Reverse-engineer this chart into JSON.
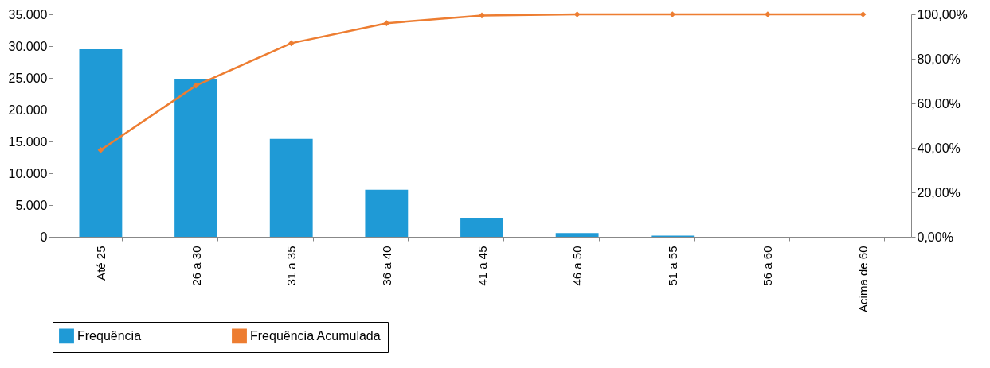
{
  "chart_data": {
    "type": "bar",
    "categories": [
      "Até 25",
      "26 a 30",
      "31 a 35",
      "36 a 40",
      "41 a 45",
      "46 a 50",
      "51 a 55",
      "56 a 60",
      "Acima de 60"
    ],
    "series": [
      {
        "name": "Frequência",
        "color": "#1f9ad6",
        "values": [
          29500,
          24800,
          15400,
          7400,
          3000,
          600,
          200,
          0,
          0
        ]
      },
      {
        "name": "Frequência Acumulada",
        "type": "line",
        "axis": "y2",
        "color": "#ed7d31",
        "values": [
          39,
          68,
          87,
          96,
          99.5,
          100,
          100,
          100,
          100
        ]
      }
    ],
    "ylim": [
      0,
      35000
    ],
    "yticks": [
      {
        "value": 0,
        "label": "0"
      },
      {
        "value": 5000,
        "label": "5.000"
      },
      {
        "value": 10000,
        "label": "10.000"
      },
      {
        "value": 15000,
        "label": "15.000"
      },
      {
        "value": 20000,
        "label": "20.000"
      },
      {
        "value": 25000,
        "label": "25.000"
      },
      {
        "value": 30000,
        "label": "30.000"
      },
      {
        "value": 35000,
        "label": "35.000"
      }
    ],
    "y2lim": [
      0,
      100
    ],
    "y2ticks": [
      {
        "value": 0,
        "label": "0,00%"
      },
      {
        "value": 20,
        "label": "20,00%"
      },
      {
        "value": 40,
        "label": "40,00%"
      },
      {
        "value": 60,
        "label": "60,00%"
      },
      {
        "value": 80,
        "label": "80,00%"
      },
      {
        "value": 100,
        "label": "100,00%"
      }
    ],
    "legend": "bottom",
    "marker": "diamond"
  }
}
